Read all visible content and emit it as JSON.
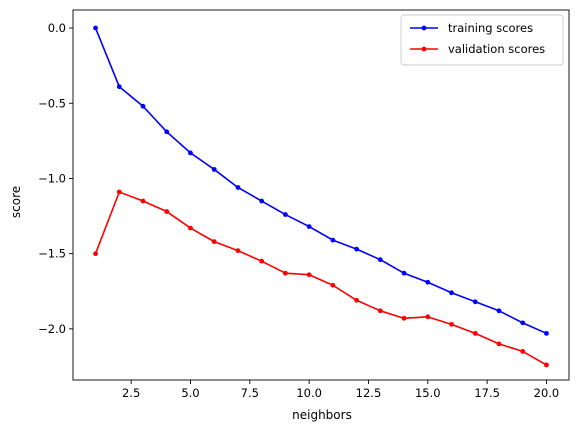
{
  "chart_data": {
    "type": "line",
    "title": "",
    "xlabel": "neighbors",
    "ylabel": "score",
    "xlim": [
      0.05,
      20.95
    ],
    "ylim": [
      -2.34,
      0.12
    ],
    "grid": false,
    "legend_position": "top-right",
    "x_ticks": [
      2.5,
      5.0,
      7.5,
      10.0,
      12.5,
      15.0,
      17.5,
      20.0
    ],
    "x_tick_labels": [
      "2.5",
      "5.0",
      "7.5",
      "10.0",
      "12.5",
      "15.0",
      "17.5",
      "20.0"
    ],
    "y_ticks": [
      0.0,
      -0.5,
      -1.0,
      -1.5,
      -2.0
    ],
    "y_tick_labels": [
      "0.0",
      "−0.5",
      "−1.0",
      "−1.5",
      "−2.0"
    ],
    "x": [
      1,
      2,
      3,
      4,
      5,
      6,
      7,
      8,
      9,
      10,
      11,
      12,
      13,
      14,
      15,
      16,
      17,
      18,
      19,
      20
    ],
    "series": [
      {
        "name": "training scores",
        "color": "#0000ff",
        "marker": "circle",
        "values": [
          0.0,
          -0.39,
          -0.52,
          -0.69,
          -0.83,
          -0.94,
          -1.06,
          -1.15,
          -1.24,
          -1.32,
          -1.41,
          -1.47,
          -1.54,
          -1.63,
          -1.69,
          -1.76,
          -1.82,
          -1.88,
          -1.96,
          -2.03
        ]
      },
      {
        "name": "validation scores",
        "color": "#ff0000",
        "marker": "circle",
        "values": [
          -1.5,
          -1.09,
          -1.15,
          -1.22,
          -1.33,
          -1.42,
          -1.48,
          -1.55,
          -1.63,
          -1.64,
          -1.71,
          -1.81,
          -1.88,
          -1.93,
          -1.92,
          -1.97,
          -2.03,
          -2.1,
          -2.15,
          -2.24
        ]
      }
    ]
  }
}
